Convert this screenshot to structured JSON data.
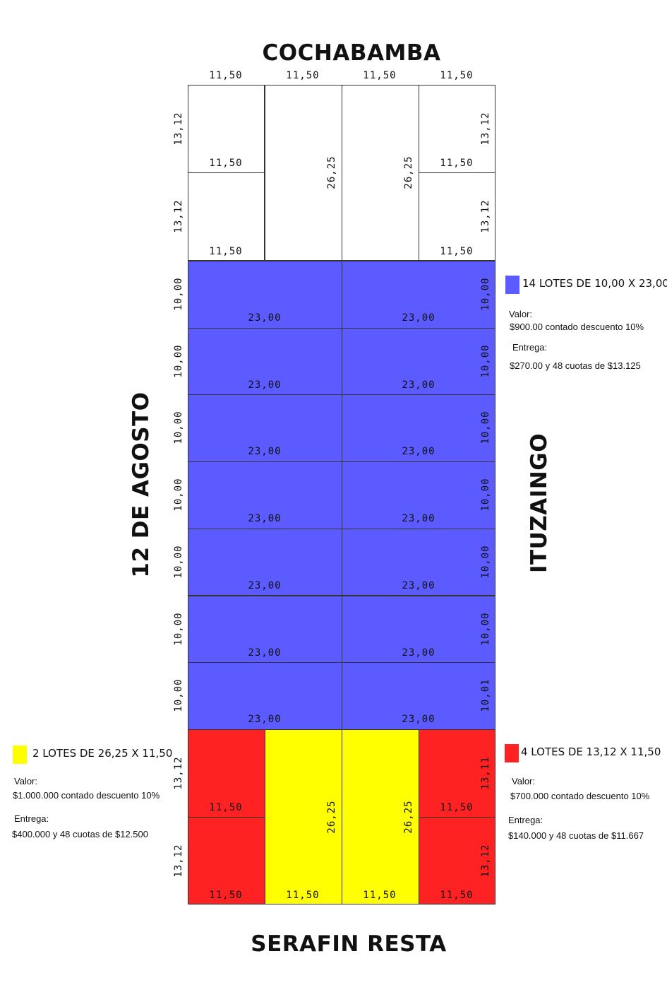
{
  "streets": {
    "north": "COCHABAMBA",
    "south": "SERAFIN RESTA",
    "west": "12 DE AGOSTO",
    "east": "ITUZAINGO"
  },
  "colors": {
    "blue": "#5b5bff",
    "yellow": "#ffff00",
    "red": "#ff2222"
  },
  "top_dims": [
    "11,50",
    "11,50",
    "11,50",
    "11,50"
  ],
  "white_block": {
    "left_dims": [
      "13,12",
      "13,12"
    ],
    "left_widths": [
      "11,50",
      "11,50"
    ],
    "middle_dims": [
      "26,25",
      "26,25"
    ],
    "right_dims": [
      "13,12",
      "13,12"
    ],
    "right_widths": [
      "11,50",
      "11,50"
    ]
  },
  "blue_rows": [
    {
      "left": "10,00",
      "w1": "23,00",
      "w2": "23,00",
      "right": "10,00"
    },
    {
      "left": "10,00",
      "w1": "23,00",
      "w2": "23,00",
      "right": "10,00"
    },
    {
      "left": "10,00",
      "w1": "23,00",
      "w2": "23,00",
      "right": "10,00"
    },
    {
      "left": "10,00",
      "w1": "23,00",
      "w2": "23,00",
      "right": "10,00"
    },
    {
      "left": "10,00",
      "w1": "23,00",
      "w2": "23,00",
      "right": "10,00"
    },
    {
      "left": "10,00",
      "w1": "23,00",
      "w2": "23,00",
      "right": "10,00"
    },
    {
      "left": "10,00",
      "w1": "23,00",
      "w2": "23,00",
      "right": "10,01"
    }
  ],
  "bottom_block": {
    "left_dims": [
      "13,12",
      "13,12"
    ],
    "mid_widths": [
      "11,50",
      "11,50"
    ],
    "middle_dims": [
      "26,25",
      "26,25"
    ],
    "right_dims": [
      "13,11",
      "13,12"
    ],
    "bottom_widths": [
      "11,50",
      "11,50",
      "11,50",
      "11,50"
    ]
  },
  "legends": {
    "blue": {
      "title": "14 LOTES DE 10,00 X 23,00",
      "valor_label": "Valor:",
      "valor": "$900.00 contado descuento 10%",
      "entrega_label": "Entrega:",
      "entrega": "$270.00 y 48 cuotas de $13.125"
    },
    "yellow": {
      "title": "2 LOTES DE 26,25 X 11,50",
      "valor_label": "Valor:",
      "valor": "$1.000.000 contado descuento 10%",
      "entrega_label": "Entrega:",
      "entrega": "$400.000 y 48 cuotas de $12.500"
    },
    "red": {
      "title": "4 LOTES DE 13,12 X 11,50",
      "valor_label": "Valor:",
      "valor": "$700.000 contado descuento 10%",
      "entrega_label": "Entrega:",
      "entrega": "$140.000 y 48 cuotas de $11.667"
    }
  }
}
